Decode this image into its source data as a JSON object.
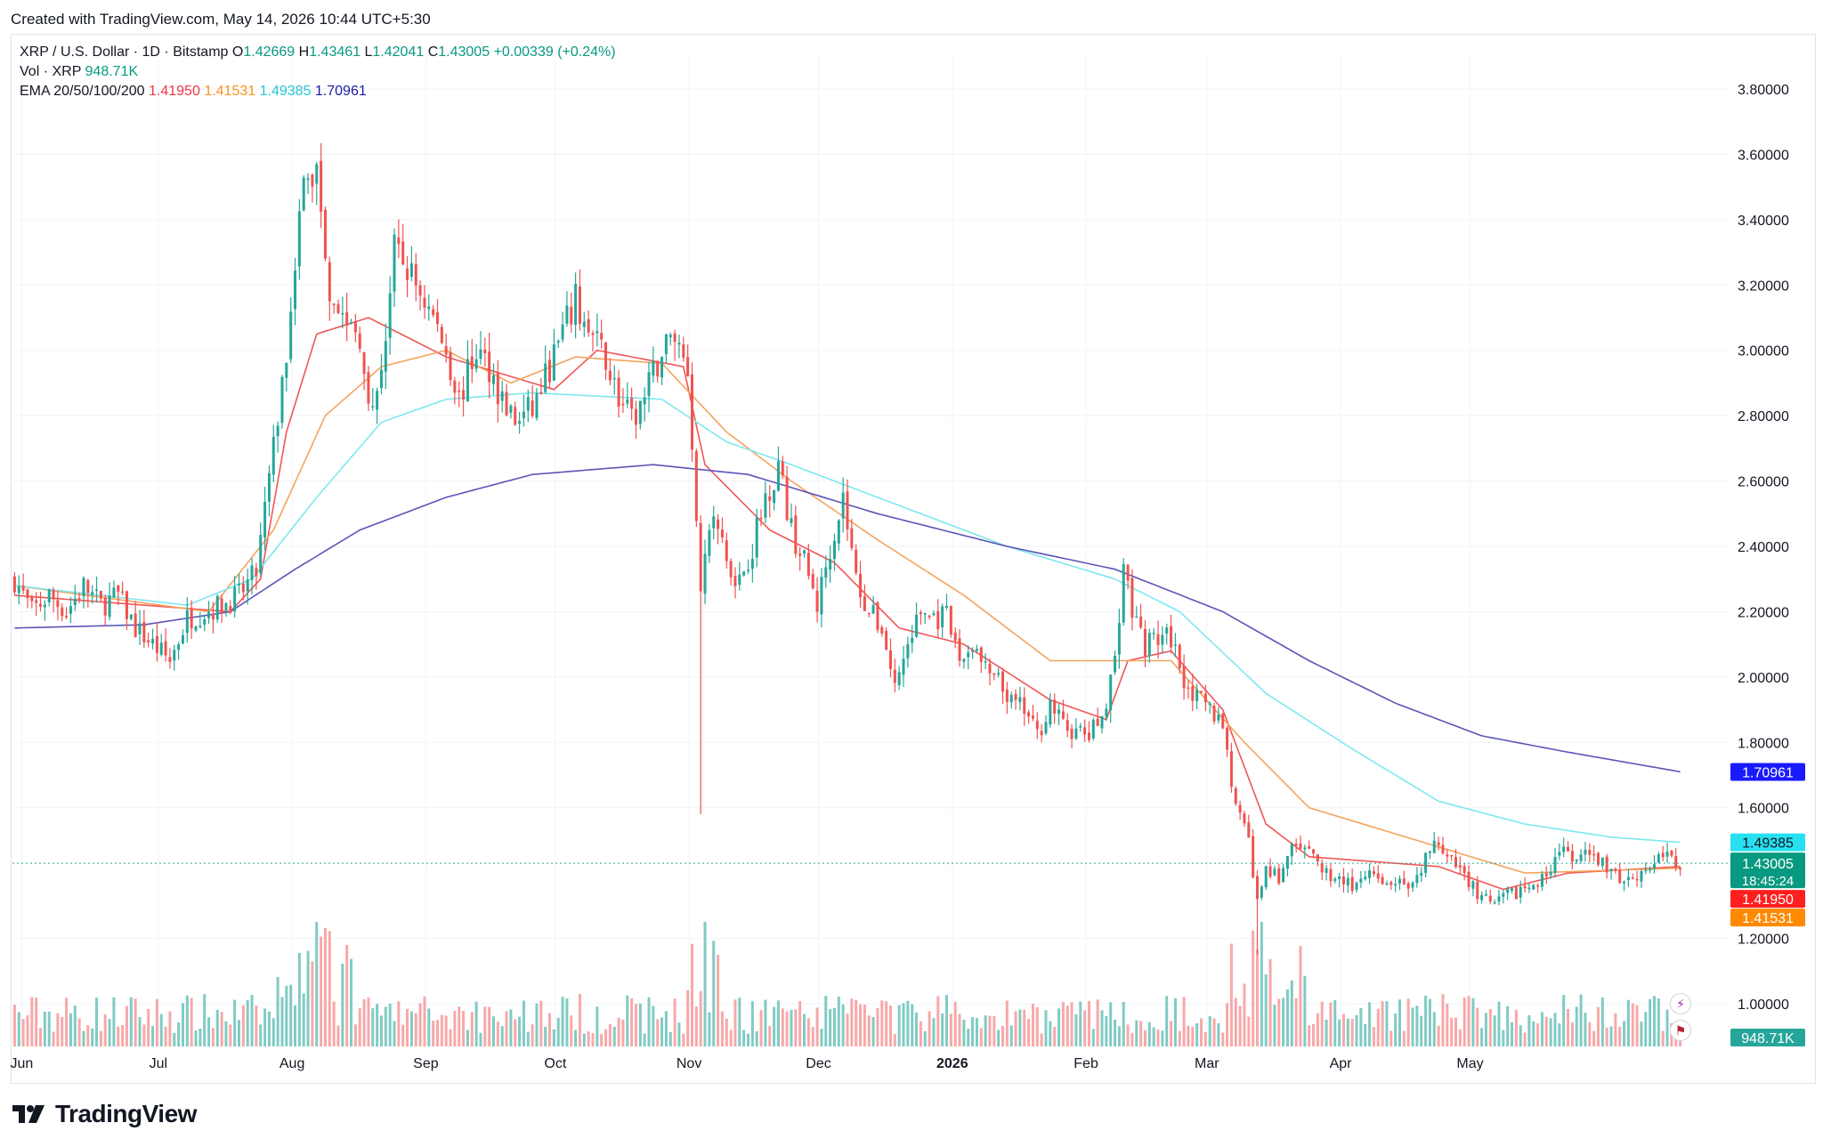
{
  "header": {
    "created_text": "Created with TradingView.com, May 14, 2026 10:44 UTC+5:30"
  },
  "legend": {
    "symbol": "XRP / U.S. Dollar · 1D · Bitstamp",
    "o_label": "O",
    "o_value": "1.42669",
    "h_label": "H",
    "h_value": "1.43461",
    "l_label": "L",
    "l_value": "1.42041",
    "c_label": "C",
    "c_value": "1.43005",
    "change": "+0.00339 (+0.24%)",
    "vol_label": "Vol · XRP",
    "vol_value": "948.71K",
    "ema_label": "EMA 20/50/100/200",
    "ema20": "1.41950",
    "ema50": "1.41531",
    "ema100": "1.49385",
    "ema200": "1.70961"
  },
  "colors": {
    "up": "#26a69a",
    "down": "#ef5350",
    "vol_up": "#80cbc4",
    "vol_down": "#f8a8a8",
    "ema20": "#f05656",
    "ema50": "#f5a35c",
    "ema100": "#7ee8ee",
    "ema200": "#5b55b8",
    "grid": "#f0f3fa"
  },
  "chart_data": {
    "type": "candlestick",
    "price_axis": {
      "ylim": [
        0.9,
        3.9
      ],
      "ticks": [
        "3.80000",
        "3.60000",
        "3.40000",
        "3.20000",
        "3.00000",
        "2.80000",
        "2.60000",
        "2.40000",
        "2.20000",
        "2.00000",
        "1.80000",
        "1.60000",
        "1.20000",
        "1.00000"
      ]
    },
    "months": [
      "Jun",
      "Jul",
      "Aug",
      "Sep",
      "Oct",
      "Nov",
      "Dec",
      "2026",
      "Feb",
      "Mar",
      "Apr",
      "May"
    ],
    "price_labels": {
      "ema200": "1.70961",
      "ema100": "1.49385",
      "close": "1.43005",
      "countdown": "18:45:24",
      "ema20": "1.41950",
      "ema50": "1.41531",
      "volume": "948.71K"
    },
    "anchors": [
      [
        0,
        2.3
      ],
      [
        4,
        2.2
      ],
      [
        8,
        2.25
      ],
      [
        12,
        2.2
      ],
      [
        16,
        2.28
      ],
      [
        20,
        2.22
      ],
      [
        24,
        2.25
      ],
      [
        28,
        2.15
      ],
      [
        32,
        2.1
      ],
      [
        36,
        2.05
      ],
      [
        40,
        2.18
      ],
      [
        44,
        2.2
      ],
      [
        48,
        2.22
      ],
      [
        52,
        2.25
      ],
      [
        56,
        2.32
      ],
      [
        60,
        2.7
      ],
      [
        63,
        3.0
      ],
      [
        65,
        3.3
      ],
      [
        67,
        3.5
      ],
      [
        70,
        3.55
      ],
      [
        73,
        3.2
      ],
      [
        76,
        3.1
      ],
      [
        80,
        3.05
      ],
      [
        83,
        2.8
      ],
      [
        86,
        3.05
      ],
      [
        88,
        3.3
      ],
      [
        91,
        3.25
      ],
      [
        94,
        3.18
      ],
      [
        97,
        3.1
      ],
      [
        100,
        3.0
      ],
      [
        103,
        2.85
      ],
      [
        107,
        3.0
      ],
      [
        110,
        2.95
      ],
      [
        113,
        2.85
      ],
      [
        116,
        2.78
      ],
      [
        120,
        2.82
      ],
      [
        124,
        2.95
      ],
      [
        127,
        3.05
      ],
      [
        130,
        3.15
      ],
      [
        133,
        3.05
      ],
      [
        137,
        2.98
      ],
      [
        140,
        2.85
      ],
      [
        143,
        2.78
      ],
      [
        146,
        2.85
      ],
      [
        150,
        3.0
      ],
      [
        153,
        3.05
      ],
      [
        156,
        2.95
      ],
      [
        159,
        2.3
      ],
      [
        162,
        2.5
      ],
      [
        165,
        2.35
      ],
      [
        168,
        2.3
      ],
      [
        171,
        2.4
      ],
      [
        174,
        2.55
      ],
      [
        177,
        2.65
      ],
      [
        180,
        2.45
      ],
      [
        183,
        2.35
      ],
      [
        186,
        2.22
      ],
      [
        189,
        2.4
      ],
      [
        192,
        2.55
      ],
      [
        195,
        2.3
      ],
      [
        198,
        2.2
      ],
      [
        201,
        2.15
      ],
      [
        204,
        1.97
      ],
      [
        207,
        2.1
      ],
      [
        210,
        2.2
      ],
      [
        213,
        2.18
      ],
      [
        216,
        2.18
      ],
      [
        219,
        2.05
      ],
      [
        222,
        2.1
      ],
      [
        225,
        2.02
      ],
      [
        228,
        1.98
      ],
      [
        231,
        1.92
      ],
      [
        234,
        1.9
      ],
      [
        237,
        1.82
      ],
      [
        240,
        1.92
      ],
      [
        243,
        1.85
      ],
      [
        246,
        1.83
      ],
      [
        249,
        1.82
      ],
      [
        252,
        1.88
      ],
      [
        255,
        2.05
      ],
      [
        257,
        2.35
      ],
      [
        259,
        2.2
      ],
      [
        262,
        2.1
      ],
      [
        265,
        2.12
      ],
      [
        268,
        2.12
      ],
      [
        271,
        2.0
      ],
      [
        274,
        1.93
      ],
      [
        277,
        1.9
      ],
      [
        280,
        1.86
      ],
      [
        283,
        1.6
      ],
      [
        286,
        1.5
      ],
      [
        288,
        1.3
      ],
      [
        290,
        1.42
      ],
      [
        293,
        1.38
      ],
      [
        296,
        1.48
      ],
      [
        300,
        1.45
      ],
      [
        304,
        1.4
      ],
      [
        308,
        1.38
      ],
      [
        311,
        1.35
      ],
      [
        314,
        1.4
      ],
      [
        317,
        1.35
      ],
      [
        320,
        1.38
      ],
      [
        323,
        1.33
      ],
      [
        326,
        1.4
      ],
      [
        329,
        1.52
      ],
      [
        331,
        1.45
      ],
      [
        334,
        1.42
      ],
      [
        337,
        1.38
      ],
      [
        340,
        1.32
      ],
      [
        343,
        1.3
      ],
      [
        346,
        1.33
      ],
      [
        349,
        1.35
      ],
      [
        352,
        1.35
      ],
      [
        355,
        1.4
      ],
      [
        358,
        1.48
      ],
      [
        361,
        1.43
      ],
      [
        364,
        1.45
      ],
      [
        367,
        1.44
      ],
      [
        370,
        1.4
      ],
      [
        373,
        1.38
      ],
      [
        376,
        1.4
      ],
      [
        379,
        1.42
      ],
      [
        382,
        1.46
      ],
      [
        385,
        1.43
      ],
      [
        386,
        1.43
      ]
    ],
    "ema_series": {
      "ema20": [
        [
          0,
          2.25
        ],
        [
          50,
          2.2
        ],
        [
          57,
          2.3
        ],
        [
          63,
          2.75
        ],
        [
          70,
          3.05
        ],
        [
          82,
          3.1
        ],
        [
          100,
          2.98
        ],
        [
          125,
          2.88
        ],
        [
          135,
          3.0
        ],
        [
          155,
          2.95
        ],
        [
          160,
          2.65
        ],
        [
          175,
          2.45
        ],
        [
          190,
          2.35
        ],
        [
          205,
          2.15
        ],
        [
          220,
          2.1
        ],
        [
          240,
          1.93
        ],
        [
          253,
          1.87
        ],
        [
          258,
          2.05
        ],
        [
          268,
          2.08
        ],
        [
          280,
          1.9
        ],
        [
          290,
          1.55
        ],
        [
          300,
          1.45
        ],
        [
          330,
          1.42
        ],
        [
          345,
          1.35
        ],
        [
          360,
          1.4
        ],
        [
          386,
          1.42
        ]
      ],
      "ema50": [
        [
          0,
          2.28
        ],
        [
          45,
          2.2
        ],
        [
          60,
          2.45
        ],
        [
          72,
          2.8
        ],
        [
          85,
          2.95
        ],
        [
          100,
          3.0
        ],
        [
          115,
          2.9
        ],
        [
          130,
          2.98
        ],
        [
          150,
          2.96
        ],
        [
          165,
          2.75
        ],
        [
          180,
          2.6
        ],
        [
          200,
          2.42
        ],
        [
          220,
          2.25
        ],
        [
          240,
          2.05
        ],
        [
          255,
          2.05
        ],
        [
          268,
          2.05
        ],
        [
          285,
          1.8
        ],
        [
          300,
          1.6
        ],
        [
          330,
          1.48
        ],
        [
          350,
          1.4
        ],
        [
          386,
          1.415
        ]
      ],
      "ema100": [
        [
          0,
          2.28
        ],
        [
          40,
          2.22
        ],
        [
          55,
          2.3
        ],
        [
          70,
          2.55
        ],
        [
          85,
          2.78
        ],
        [
          100,
          2.85
        ],
        [
          120,
          2.87
        ],
        [
          150,
          2.85
        ],
        [
          165,
          2.72
        ],
        [
          180,
          2.65
        ],
        [
          200,
          2.55
        ],
        [
          230,
          2.4
        ],
        [
          255,
          2.3
        ],
        [
          270,
          2.2
        ],
        [
          290,
          1.95
        ],
        [
          310,
          1.78
        ],
        [
          330,
          1.62
        ],
        [
          350,
          1.55
        ],
        [
          370,
          1.51
        ],
        [
          386,
          1.494
        ]
      ],
      "ema200": [
        [
          0,
          2.15
        ],
        [
          30,
          2.16
        ],
        [
          50,
          2.2
        ],
        [
          65,
          2.33
        ],
        [
          80,
          2.45
        ],
        [
          100,
          2.55
        ],
        [
          120,
          2.62
        ],
        [
          148,
          2.65
        ],
        [
          170,
          2.62
        ],
        [
          200,
          2.5
        ],
        [
          230,
          2.4
        ],
        [
          255,
          2.33
        ],
        [
          280,
          2.2
        ],
        [
          300,
          2.05
        ],
        [
          320,
          1.92
        ],
        [
          340,
          1.82
        ],
        [
          360,
          1.77
        ],
        [
          386,
          1.71
        ]
      ]
    }
  }
}
